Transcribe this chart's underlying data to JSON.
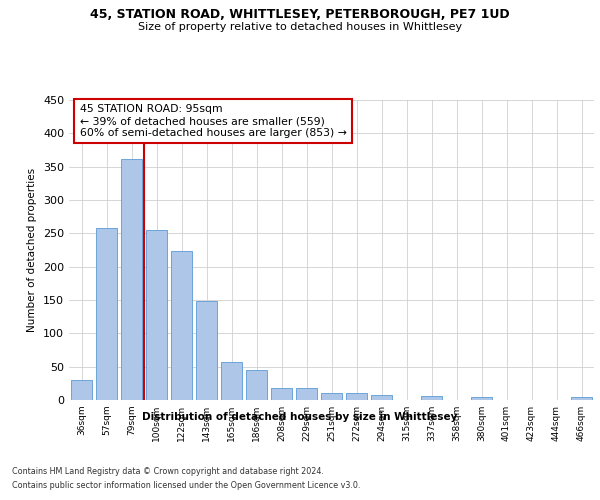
{
  "title1": "45, STATION ROAD, WHITTLESEY, PETERBOROUGH, PE7 1UD",
  "title2": "Size of property relative to detached houses in Whittlesey",
  "xlabel": "Distribution of detached houses by size in Whittlesey",
  "ylabel": "Number of detached properties",
  "categories": [
    "36sqm",
    "57sqm",
    "79sqm",
    "100sqm",
    "122sqm",
    "143sqm",
    "165sqm",
    "186sqm",
    "208sqm",
    "229sqm",
    "251sqm",
    "272sqm",
    "294sqm",
    "315sqm",
    "337sqm",
    "358sqm",
    "380sqm",
    "401sqm",
    "423sqm",
    "444sqm",
    "466sqm"
  ],
  "bar_values": [
    30,
    258,
    362,
    255,
    224,
    148,
    57,
    45,
    18,
    18,
    11,
    11,
    7,
    0,
    6,
    0,
    5,
    0,
    0,
    0,
    4
  ],
  "bar_color": "#aec6e8",
  "bar_edge_color": "#5b9bd5",
  "vline_x_index": 2,
  "annotation_title": "45 STATION ROAD: 95sqm",
  "annotation_line1": "← 39% of detached houses are smaller (559)",
  "annotation_line2": "60% of semi-detached houses are larger (853) →",
  "annotation_box_color": "#ffffff",
  "annotation_box_edge": "#cc0000",
  "vline_color": "#cc0000",
  "footer1": "Contains HM Land Registry data © Crown copyright and database right 2024.",
  "footer2": "Contains public sector information licensed under the Open Government Licence v3.0.",
  "background_color": "#ffffff",
  "ylim": [
    0,
    450
  ],
  "yticks": [
    0,
    50,
    100,
    150,
    200,
    250,
    300,
    350,
    400,
    450
  ],
  "grid_color": "#d0d0d0"
}
